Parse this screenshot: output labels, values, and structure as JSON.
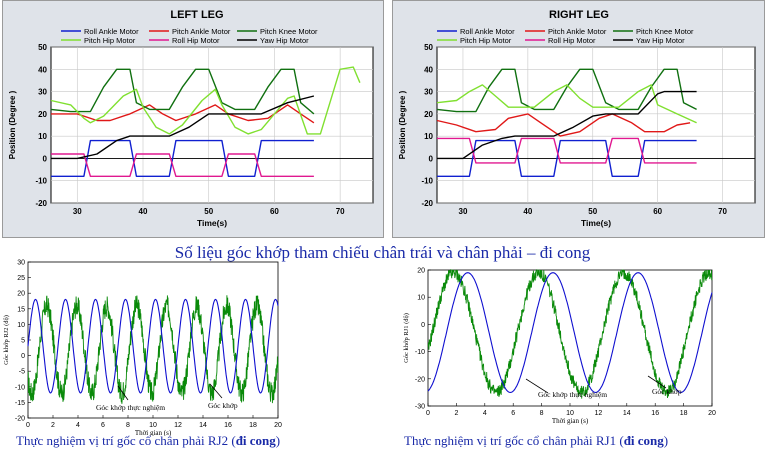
{
  "caption_main": "Số liệu  góc khớp tham  chiếu  chân trái  và chân phải – đi cong",
  "caption_left": {
    "text": "Thực nghiệm vị trí gốc cổ chân phải RJ2 (",
    "bold": "đi cong",
    "close": ")"
  },
  "caption_right": {
    "text": "Thực nghiệm vị trí gốc cổ chân phải RJ1 (",
    "bold": "đi cong",
    "close": ")"
  },
  "colors": {
    "roll_ankle": "#1020d0",
    "pitch_ankle": "#e01818",
    "pitch_knee": "#107010",
    "pitch_hip": "#80e030",
    "roll_hip": "#e01890",
    "yaw_hip": "#000000",
    "experiment": "#0a8a0a",
    "reference": "#1010d0"
  },
  "chart_data": [
    {
      "type": "line",
      "title": "LEFT LEG",
      "xlabel": "Time(s)",
      "ylabel": "Position (Degree )",
      "xlim": [
        26,
        75
      ],
      "ylim": [
        -20,
        50
      ],
      "xticks": [
        30,
        40,
        50,
        60,
        70
      ],
      "yticks": [
        -20,
        -10,
        0,
        10,
        20,
        30,
        40,
        50
      ],
      "grid": true,
      "legend": [
        "Roll Ankle Motor",
        "Pitch Ankle Motor",
        "Pitch Knee Motor",
        "Pitch Hip Motor",
        "Roll Hip Motor",
        "Yaw Hip Motor"
      ],
      "series": [
        {
          "name": "Roll Ankle Motor",
          "color": "roll_ankle",
          "points": [
            [
              26,
              -8
            ],
            [
              31,
              -8
            ],
            [
              32,
              8
            ],
            [
              38,
              8
            ],
            [
              39,
              -8
            ],
            [
              44,
              -8
            ],
            [
              45,
              8
            ],
            [
              52,
              8
            ],
            [
              53,
              -8
            ],
            [
              57,
              -8
            ],
            [
              58,
              8
            ],
            [
              66,
              8
            ]
          ]
        },
        {
          "name": "Pitch Ankle Motor",
          "color": "pitch_ankle",
          "points": [
            [
              26,
              20
            ],
            [
              30,
              20
            ],
            [
              33,
              17
            ],
            [
              35,
              17
            ],
            [
              38,
              20
            ],
            [
              41,
              24
            ],
            [
              43,
              20
            ],
            [
              45,
              17
            ],
            [
              48,
              20
            ],
            [
              51,
              24
            ],
            [
              53,
              20
            ],
            [
              56,
              17
            ],
            [
              59,
              18
            ],
            [
              62,
              24
            ],
            [
              64,
              20
            ],
            [
              66,
              16
            ]
          ]
        },
        {
          "name": "Pitch Knee Motor",
          "color": "pitch_knee",
          "points": [
            [
              26,
              22
            ],
            [
              29,
              21
            ],
            [
              32,
              21
            ],
            [
              34,
              32
            ],
            [
              36,
              40
            ],
            [
              38,
              40
            ],
            [
              39,
              25
            ],
            [
              41,
              22
            ],
            [
              44,
              22
            ],
            [
              46,
              32
            ],
            [
              48,
              40
            ],
            [
              50,
              40
            ],
            [
              52,
              25
            ],
            [
              54,
              22
            ],
            [
              57,
              22
            ],
            [
              59,
              32
            ],
            [
              61,
              40
            ],
            [
              63,
              40
            ],
            [
              64,
              25
            ],
            [
              66,
              20
            ]
          ]
        },
        {
          "name": "Pitch Hip Motor",
          "color": "pitch_hip",
          "points": [
            [
              26,
              26
            ],
            [
              29,
              24
            ],
            [
              31,
              18
            ],
            [
              32,
              16
            ],
            [
              34,
              19
            ],
            [
              37,
              28
            ],
            [
              39,
              31
            ],
            [
              40,
              23
            ],
            [
              42,
              14
            ],
            [
              44,
              11
            ],
            [
              46,
              15
            ],
            [
              49,
              26
            ],
            [
              51,
              31
            ],
            [
              52,
              24
            ],
            [
              54,
              14
            ],
            [
              56,
              11
            ],
            [
              58,
              13
            ],
            [
              62,
              27
            ],
            [
              63,
              28
            ],
            [
              65,
              11
            ],
            [
              67,
              11
            ],
            [
              70,
              40
            ],
            [
              72,
              41
            ],
            [
              73,
              34
            ]
          ]
        },
        {
          "name": "Roll Hip Motor",
          "color": "roll_hip",
          "points": [
            [
              26,
              2
            ],
            [
              31,
              2
            ],
            [
              32,
              -8
            ],
            [
              38,
              -8
            ],
            [
              39,
              2
            ],
            [
              44,
              2
            ],
            [
              45,
              -8
            ],
            [
              52,
              -8
            ],
            [
              53,
              2
            ],
            [
              57,
              2
            ],
            [
              58,
              -8
            ],
            [
              66,
              -8
            ]
          ]
        },
        {
          "name": "Yaw Hip Motor",
          "color": "yaw_hip",
          "points": [
            [
              26,
              0
            ],
            [
              30,
              0
            ],
            [
              33,
              2
            ],
            [
              36,
              8
            ],
            [
              38,
              10
            ],
            [
              44,
              10
            ],
            [
              47,
              14
            ],
            [
              50,
              20
            ],
            [
              52,
              20
            ],
            [
              58,
              20
            ],
            [
              62,
              25
            ],
            [
              66,
              28
            ]
          ]
        }
      ]
    },
    {
      "type": "line",
      "title": "RIGHT LEG",
      "xlabel": "Time(s)",
      "ylabel": "Position (Degree )",
      "xlim": [
        26,
        75
      ],
      "ylim": [
        -20,
        50
      ],
      "xticks": [
        30,
        40,
        50,
        60,
        70
      ],
      "yticks": [
        -20,
        -10,
        0,
        10,
        20,
        30,
        40,
        50
      ],
      "grid": true,
      "legend": [
        "Roll Ankle Motor",
        "Pitch Ankle Motor",
        "Pitch Knee Motor",
        "Pitch Hip Motor",
        "Roll Hip Motor",
        "Yaw Hip Motor"
      ],
      "series": [
        {
          "name": "Roll Ankle Motor",
          "color": "roll_ankle",
          "points": [
            [
              26,
              -8
            ],
            [
              31,
              -8
            ],
            [
              32,
              8
            ],
            [
              38,
              8
            ],
            [
              39,
              -8
            ],
            [
              44,
              -8
            ],
            [
              45,
              8
            ],
            [
              52,
              8
            ],
            [
              53,
              -8
            ],
            [
              57,
              -8
            ],
            [
              58,
              8
            ],
            [
              66,
              8
            ]
          ]
        },
        {
          "name": "Pitch Ankle Motor",
          "color": "pitch_ankle",
          "points": [
            [
              26,
              17
            ],
            [
              29,
              15
            ],
            [
              32,
              12
            ],
            [
              35,
              13
            ],
            [
              37,
              18
            ],
            [
              40,
              20
            ],
            [
              42,
              16
            ],
            [
              45,
              10
            ],
            [
              48,
              12
            ],
            [
              51,
              18
            ],
            [
              53,
              20
            ],
            [
              56,
              16
            ],
            [
              58,
              12
            ],
            [
              61,
              12
            ],
            [
              63,
              15
            ],
            [
              65,
              16
            ]
          ]
        },
        {
          "name": "Pitch Knee Motor",
          "color": "pitch_knee",
          "points": [
            [
              26,
              22
            ],
            [
              29,
              21
            ],
            [
              32,
              21
            ],
            [
              34,
              32
            ],
            [
              36,
              40
            ],
            [
              38,
              40
            ],
            [
              39,
              25
            ],
            [
              41,
              22
            ],
            [
              44,
              22
            ],
            [
              46,
              32
            ],
            [
              48,
              40
            ],
            [
              50,
              40
            ],
            [
              52,
              25
            ],
            [
              54,
              22
            ],
            [
              57,
              22
            ],
            [
              59,
              32
            ],
            [
              61,
              40
            ],
            [
              63,
              40
            ],
            [
              64,
              25
            ],
            [
              66,
              22
            ]
          ]
        },
        {
          "name": "Pitch Hip Motor",
          "color": "pitch_hip",
          "points": [
            [
              26,
              25
            ],
            [
              29,
              26
            ],
            [
              31,
              30
            ],
            [
              33,
              33
            ],
            [
              35,
              28
            ],
            [
              37,
              23
            ],
            [
              41,
              23
            ],
            [
              44,
              30
            ],
            [
              46,
              33
            ],
            [
              48,
              27
            ],
            [
              50,
              23
            ],
            [
              54,
              23
            ],
            [
              57,
              30
            ],
            [
              59,
              33
            ],
            [
              60,
              24
            ],
            [
              63,
              20
            ],
            [
              66,
              16
            ]
          ]
        },
        {
          "name": "Roll Hip Motor",
          "color": "roll_hip",
          "points": [
            [
              26,
              9
            ],
            [
              31,
              9
            ],
            [
              32,
              -2
            ],
            [
              38,
              -2
            ],
            [
              39,
              9
            ],
            [
              44,
              9
            ],
            [
              45,
              -2
            ],
            [
              52,
              -2
            ],
            [
              53,
              9
            ],
            [
              57,
              9
            ],
            [
              58,
              -2
            ],
            [
              66,
              -2
            ]
          ]
        },
        {
          "name": "Yaw Hip Motor",
          "color": "yaw_hip",
          "points": [
            [
              26,
              0
            ],
            [
              30,
              0
            ],
            [
              33,
              6
            ],
            [
              36,
              9
            ],
            [
              38,
              10
            ],
            [
              44,
              10
            ],
            [
              47,
              14
            ],
            [
              50,
              19
            ],
            [
              52,
              20
            ],
            [
              57,
              20
            ],
            [
              60,
              29
            ],
            [
              61,
              30
            ],
            [
              66,
              30
            ]
          ]
        }
      ]
    },
    {
      "type": "line",
      "xlabel": "Thời gian (s)",
      "ylabel": "Góc khớp RJ2 (độ)",
      "xlim": [
        0,
        20
      ],
      "ylim": [
        -20,
        30
      ],
      "xticks": [
        0,
        2,
        4,
        6,
        8,
        10,
        12,
        14,
        16,
        18,
        20
      ],
      "yticks": [
        -20,
        -15,
        -10,
        -5,
        0,
        5,
        10,
        15,
        20,
        25,
        30
      ],
      "annotations": [
        "Góc khớp thực nghiệm",
        "Góc khớp"
      ],
      "reference": {
        "amplitude": 15,
        "offset": 3,
        "period": 2.4,
        "phase": 0.0
      },
      "experiment": {
        "amplitude": 14,
        "offset": 2,
        "period": 2.4,
        "phase": 0.9,
        "noise": 3.5
      }
    },
    {
      "type": "line",
      "xlabel": "Thời gian (s)",
      "ylabel": "Góc khớp RJ1 (độ)",
      "xlim": [
        0,
        20
      ],
      "ylim": [
        -30,
        20
      ],
      "xticks": [
        0,
        2,
        4,
        6,
        8,
        10,
        12,
        14,
        16,
        18,
        20
      ],
      "yticks": [
        -30,
        -20,
        -10,
        0,
        10,
        20
      ],
      "annotations": [
        "Góc khớp thực nghiệm",
        "Góc khớp"
      ],
      "reference": {
        "amplitude": 22,
        "offset": -3,
        "period": 6.0,
        "phase": 1.3
      },
      "experiment": {
        "amplitude": 22,
        "offset": -3,
        "period": 6.0,
        "phase": 0.3,
        "noise": 2.5
      }
    }
  ]
}
